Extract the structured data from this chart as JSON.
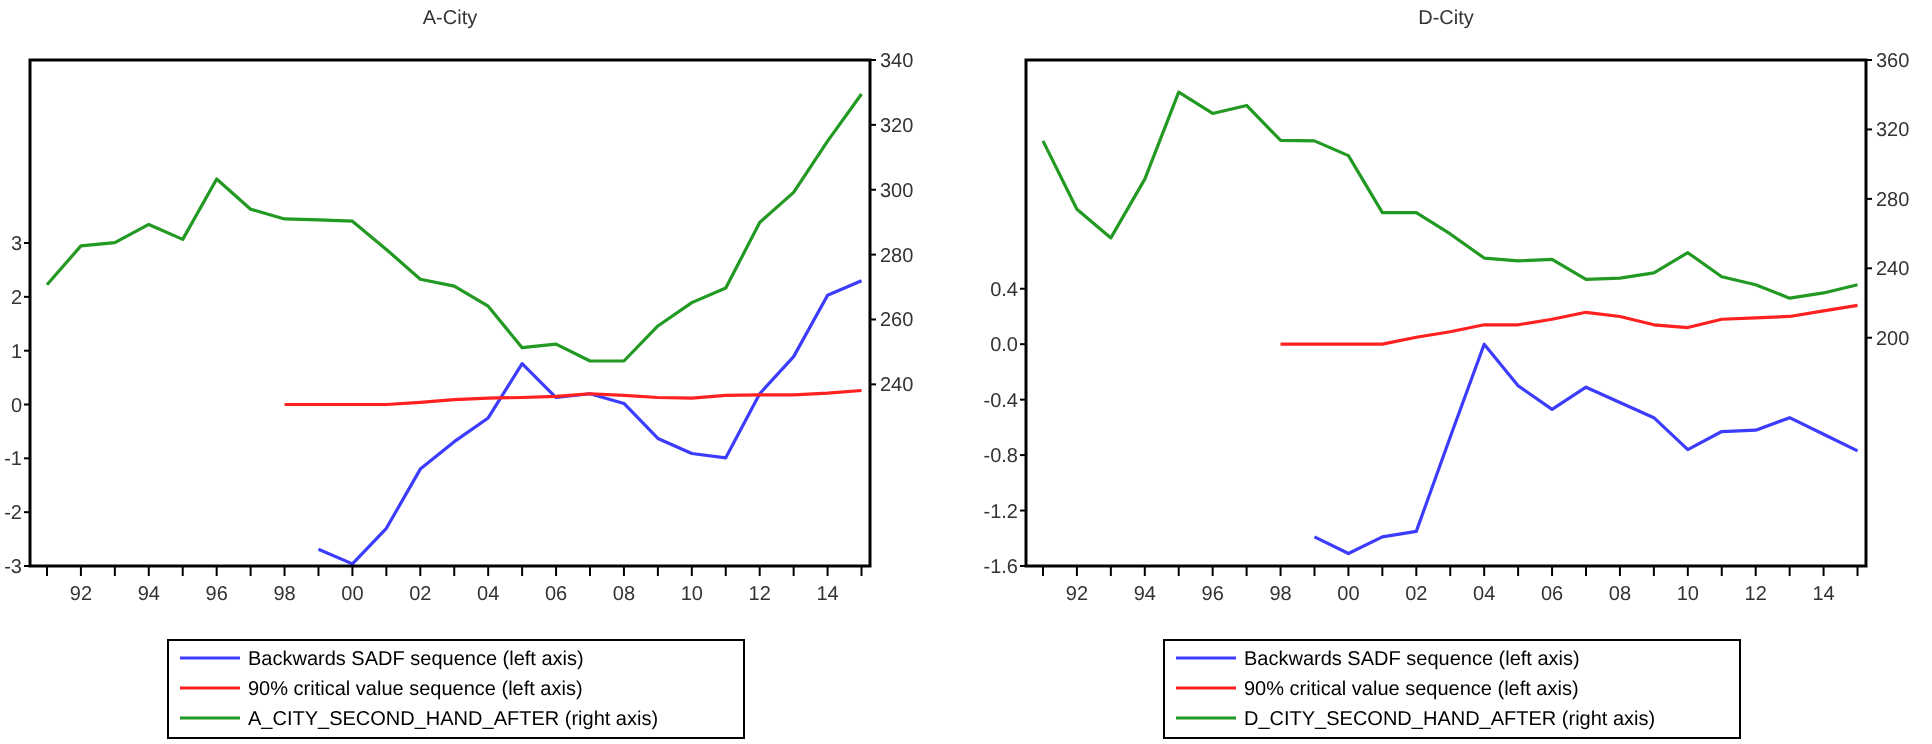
{
  "chart_data": [
    {
      "type": "line",
      "title": "A-City",
      "legend": "bottom",
      "xlim": [
        1990.5,
        2015.25
      ],
      "ylim": [
        -3,
        6.4
      ],
      "y2lim": [
        184,
        340
      ],
      "xticks": [
        {
          "value": 1991,
          "label": null
        },
        {
          "value": 1992,
          "label": "92"
        },
        {
          "value": 1993,
          "label": null
        },
        {
          "value": 1994,
          "label": "94"
        },
        {
          "value": 1995,
          "label": null
        },
        {
          "value": 1996,
          "label": "96"
        },
        {
          "value": 1997,
          "label": null
        },
        {
          "value": 1998,
          "label": "98"
        },
        {
          "value": 1999,
          "label": null
        },
        {
          "value": 2000,
          "label": "00"
        },
        {
          "value": 2001,
          "label": null
        },
        {
          "value": 2002,
          "label": "02"
        },
        {
          "value": 2003,
          "label": null
        },
        {
          "value": 2004,
          "label": "04"
        },
        {
          "value": 2005,
          "label": null
        },
        {
          "value": 2006,
          "label": "06"
        },
        {
          "value": 2007,
          "label": null
        },
        {
          "value": 2008,
          "label": "08"
        },
        {
          "value": 2009,
          "label": null
        },
        {
          "value": 2010,
          "label": "10"
        },
        {
          "value": 2011,
          "label": null
        },
        {
          "value": 2012,
          "label": "12"
        },
        {
          "value": 2013,
          "label": null
        },
        {
          "value": 2014,
          "label": "14"
        },
        {
          "value": 2015,
          "label": null
        }
      ],
      "yticks": [
        -3,
        -2,
        -1,
        0,
        1,
        2,
        3
      ],
      "y2ticks": [
        240,
        260,
        280,
        300,
        320,
        340
      ],
      "series": [
        {
          "name": "Backwards SADF sequence (left axis)",
          "color": "#3c3cff",
          "axis": "y",
          "x": [
            1999,
            2000,
            2001,
            2002,
            2003,
            2004,
            2005,
            2006,
            2007,
            2008,
            2009,
            2010,
            2011,
            2012,
            2013,
            2014,
            2015
          ],
          "values": [
            -2.69,
            -2.96,
            -2.3,
            -1.2,
            -0.69,
            -0.25,
            0.76,
            0.13,
            0.2,
            0.02,
            -0.63,
            -0.91,
            -0.99,
            0.2,
            0.89,
            2.03,
            2.3
          ]
        },
        {
          "name": "90% critical value sequence (left axis)",
          "color": "#ff2020",
          "axis": "y",
          "x": [
            1998,
            1999,
            2000,
            2001,
            2002,
            2003,
            2004,
            2005,
            2006,
            2007,
            2008,
            2009,
            2010,
            2011,
            2012,
            2013,
            2014,
            2015
          ],
          "values": [
            0,
            0,
            0,
            0,
            0.04,
            0.09,
            0.12,
            0.13,
            0.15,
            0.2,
            0.17,
            0.13,
            0.12,
            0.17,
            0.18,
            0.18,
            0.21,
            0.26
          ]
        },
        {
          "name": "A_CITY_SECOND_HAND_AFTER (right axis)",
          "color": "#229922",
          "axis": "y2",
          "x": [
            1991,
            1992,
            1993,
            1994,
            1995,
            1996,
            1997,
            1998,
            1999,
            2000,
            2001,
            2002,
            2003,
            2004,
            2005,
            2006,
            2007,
            2008,
            2009,
            2010,
            2011,
            2012,
            2013,
            2014,
            2015
          ],
          "values": [
            270.7,
            282.7,
            283.7,
            289.3,
            284.7,
            303.3,
            294,
            291,
            290.7,
            290.3,
            281.6,
            272.4,
            270.3,
            264.1,
            251.3,
            252.4,
            247.2,
            247.2,
            258,
            265.2,
            269.7,
            289.9,
            299.2,
            315,
            329.5
          ]
        }
      ]
    },
    {
      "type": "line",
      "title": "D-City",
      "legend": "bottom",
      "xlim": [
        1990.5,
        2015.25
      ],
      "ylim": [
        -1.6,
        2.05
      ],
      "y2lim": [
        68.5,
        360
      ],
      "xticks": [
        {
          "value": 1991,
          "label": null
        },
        {
          "value": 1992,
          "label": "92"
        },
        {
          "value": 1993,
          "label": null
        },
        {
          "value": 1994,
          "label": "94"
        },
        {
          "value": 1995,
          "label": null
        },
        {
          "value": 1996,
          "label": "96"
        },
        {
          "value": 1997,
          "label": null
        },
        {
          "value": 1998,
          "label": "98"
        },
        {
          "value": 1999,
          "label": null
        },
        {
          "value": 2000,
          "label": "00"
        },
        {
          "value": 2001,
          "label": null
        },
        {
          "value": 2002,
          "label": "02"
        },
        {
          "value": 2003,
          "label": null
        },
        {
          "value": 2004,
          "label": "04"
        },
        {
          "value": 2005,
          "label": null
        },
        {
          "value": 2006,
          "label": "06"
        },
        {
          "value": 2007,
          "label": null
        },
        {
          "value": 2008,
          "label": "08"
        },
        {
          "value": 2009,
          "label": null
        },
        {
          "value": 2010,
          "label": "10"
        },
        {
          "value": 2011,
          "label": null
        },
        {
          "value": 2012,
          "label": "12"
        },
        {
          "value": 2013,
          "label": null
        },
        {
          "value": 2014,
          "label": "14"
        },
        {
          "value": 2015,
          "label": null
        }
      ],
      "yticks": [
        -1.6,
        -1.2,
        -0.8,
        -0.4,
        {
          "value": 0,
          "label": "0.0"
        },
        0.4
      ],
      "y2ticks": [
        200,
        240,
        280,
        320,
        360
      ],
      "series": [
        {
          "name": "Backwards SADF sequence (left axis)",
          "color": "#3c3cff",
          "axis": "y",
          "x": [
            1999,
            2000,
            2001,
            2002,
            2003,
            2004,
            2005,
            2006,
            2007,
            2008,
            2009,
            2010,
            2011,
            2012,
            2013,
            2014,
            2015
          ],
          "values": [
            -1.39,
            -1.51,
            -1.39,
            -1.35,
            -0.67,
            0,
            -0.3,
            -0.47,
            -0.31,
            -0.42,
            -0.53,
            -0.76,
            -0.63,
            -0.62,
            -0.53,
            -0.65,
            -0.77
          ]
        },
        {
          "name": "90% critical value sequence (left axis)",
          "color": "#ff2020",
          "axis": "y",
          "x": [
            1998,
            1999,
            2000,
            2001,
            2002,
            2003,
            2004,
            2005,
            2006,
            2007,
            2008,
            2009,
            2010,
            2011,
            2012,
            2013,
            2014,
            2015
          ],
          "values": [
            0,
            0,
            0,
            0,
            0.05,
            0.09,
            0.14,
            0.14,
            0.18,
            0.23,
            0.2,
            0.14,
            0.12,
            0.18,
            0.19,
            0.2,
            0.24,
            0.28
          ]
        },
        {
          "name": "D_CITY_SECOND_HAND_AFTER (right axis)",
          "color": "#229922",
          "axis": "y2",
          "x": [
            1991,
            1992,
            1993,
            1994,
            1995,
            1996,
            1997,
            1998,
            1999,
            2000,
            2001,
            2002,
            2003,
            2004,
            2005,
            2006,
            2007,
            2008,
            2009,
            2010,
            2011,
            2012,
            2013,
            2014,
            2015
          ],
          "values": [
            313.4,
            274,
            257.5,
            291.4,
            341.5,
            329.2,
            333.8,
            313.7,
            313.4,
            304.9,
            272.1,
            272.1,
            259.8,
            245.9,
            244.3,
            245.1,
            233.6,
            234.3,
            237.4,
            249,
            235.1,
            230.5,
            222.8,
            225.8,
            230.5
          ]
        }
      ]
    }
  ]
}
